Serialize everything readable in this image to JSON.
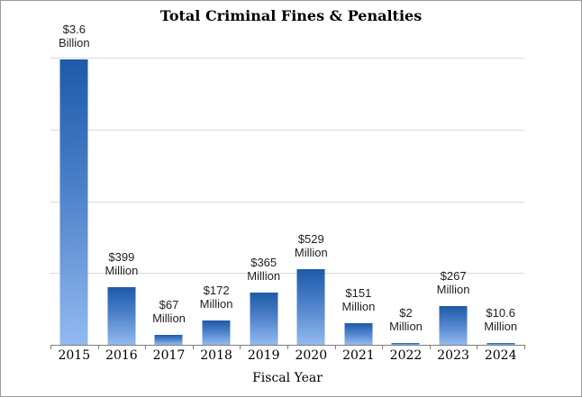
{
  "chart_data": {
    "type": "bar",
    "title": "Total Criminal Fines & Penalties",
    "xlabel": "Fiscal Year",
    "ylabel": "",
    "categories": [
      "2015",
      "2016",
      "2017",
      "2018",
      "2019",
      "2020",
      "2021",
      "2022",
      "2023",
      "2024"
    ],
    "values_millions_usd": [
      3600,
      399,
      67,
      172,
      365,
      529,
      151,
      2,
      267,
      10.6
    ],
    "data_labels": [
      [
        "$3.6",
        "Billion"
      ],
      [
        "$399",
        "Million"
      ],
      [
        "$67",
        "Million"
      ],
      [
        "$172",
        "Million"
      ],
      [
        "$365",
        "Million"
      ],
      [
        "$529",
        "Million"
      ],
      [
        "$151",
        "Million"
      ],
      [
        "$2",
        "Million"
      ],
      [
        "$267",
        "Million"
      ],
      [
        "$10.6",
        "Million"
      ]
    ],
    "ylim": [
      0,
      2000
    ],
    "gridline_interval": 500,
    "grid": true,
    "legend": false,
    "y_tick_labels_visible": false,
    "clipped_categories": [
      "2015"
    ],
    "colors": {
      "bar_gradient_top": "#1d5aa8",
      "bar_gradient_bottom": "#93baf0",
      "gridline": "#d9d9d9",
      "axis_line": "#7f7f7f",
      "title_text": "#000000",
      "label_text": "#1f1f1f"
    }
  }
}
